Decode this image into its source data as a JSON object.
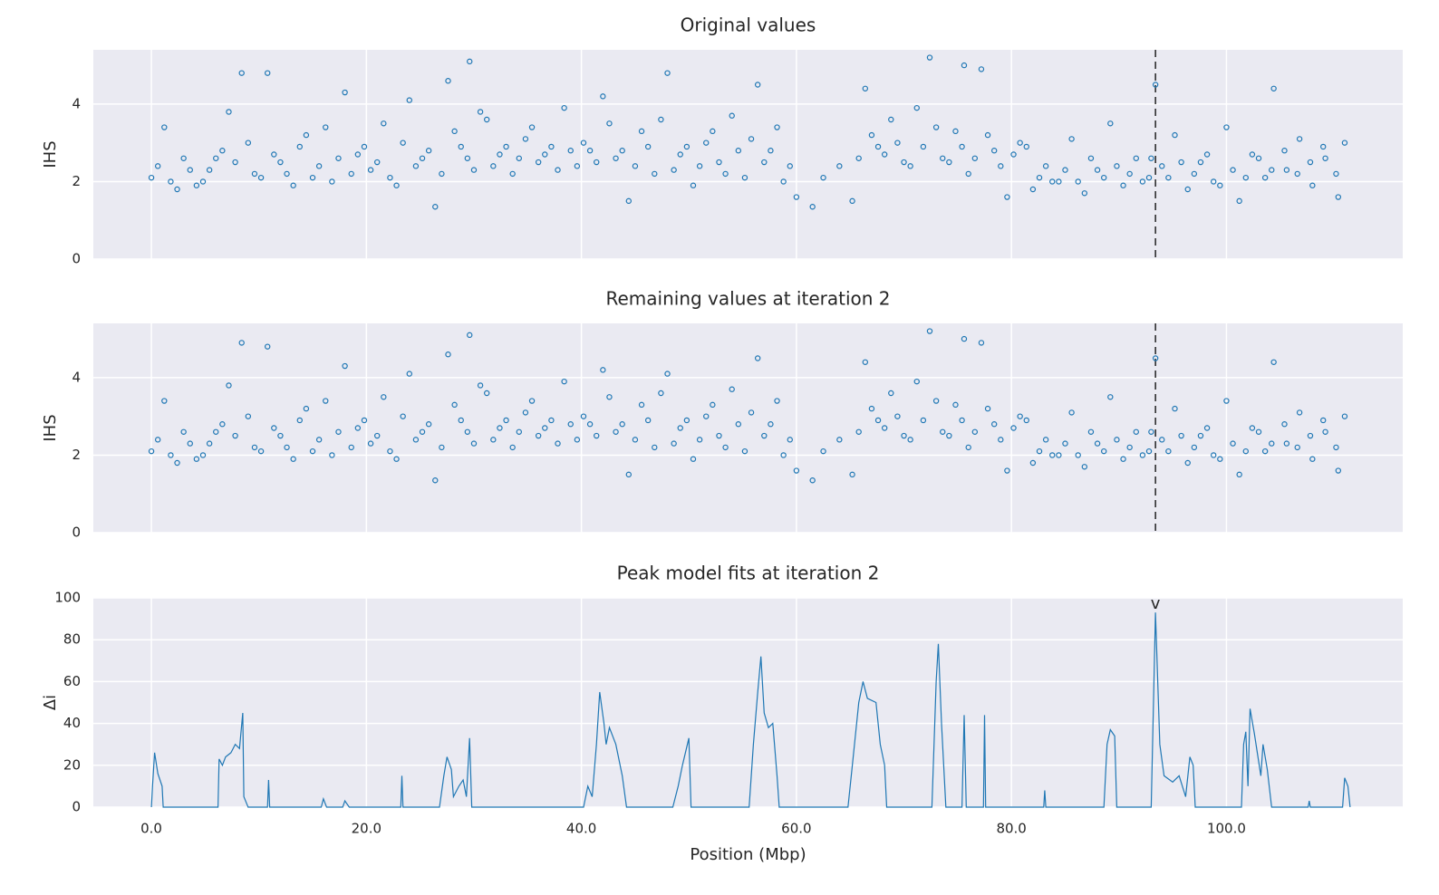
{
  "chart_data": [
    {
      "type": "scatter",
      "title": "Original values",
      "ylabel": "IHS",
      "color": "#1f77b4",
      "grid": true,
      "xlim": [
        -5.4,
        116.4
      ],
      "xticks": [
        0,
        20,
        40,
        60,
        80,
        100
      ],
      "xtick_labels": false,
      "ylim": [
        0,
        5.4
      ],
      "yticks": [
        0,
        2,
        4
      ],
      "vline": 93.4,
      "x": [
        0,
        1.2,
        2.4,
        3.6,
        4.8,
        6,
        7.2,
        8.4,
        9.6,
        10.8,
        12,
        13.2,
        14.4,
        15.6,
        16.8,
        18,
        19.2,
        20.4,
        21.6,
        22.8,
        24,
        25.2,
        26.4,
        27.6,
        28.8,
        29.6,
        30,
        31.2,
        32.4,
        33.6,
        34.8,
        36,
        37.2,
        38.4,
        39.6,
        40.8,
        42,
        43.2,
        44.4,
        45.6,
        46.8,
        48,
        49.2,
        50.4,
        51.6,
        52.8,
        54,
        55.2,
        56.4,
        57.6,
        58.8,
        60,
        61.5,
        62.5,
        64,
        65.2,
        66.4,
        67.6,
        68.8,
        70,
        71.2,
        72.4,
        73.6,
        74.8,
        75.6,
        76,
        77.2,
        78.4,
        79.6,
        80.8,
        82,
        83.2,
        84.4,
        85.6,
        86.8,
        88,
        89.2,
        90.4,
        91.6,
        92.8,
        93.4,
        94,
        95.2,
        96.4,
        97.6,
        98.8,
        100,
        101.2,
        102.4,
        103.6,
        104.4,
        105.6,
        106.8,
        108,
        109.2,
        110.4,
        111,
        0.6,
        1.8,
        3.0,
        4.2,
        5.4,
        6.6,
        7.8,
        9.0,
        10.2,
        11.4,
        12.6,
        13.8,
        15.0,
        16.2,
        17.4,
        18.6,
        19.8,
        21.0,
        22.2,
        23.4,
        24.6,
        25.8,
        27.0,
        28.2,
        29.4,
        30.6,
        31.8,
        33.0,
        34.2,
        35.4,
        36.6,
        37.8,
        39.0,
        40.2,
        41.4,
        42.6,
        43.8,
        45.0,
        46.2,
        47.4,
        48.6,
        49.8,
        51.0,
        52.2,
        53.4,
        54.6,
        55.8,
        57.0,
        58.2,
        59.4,
        65.8,
        67.0,
        68.2,
        69.4,
        70.6,
        71.8,
        73.0,
        74.2,
        75.4,
        76.6,
        77.8,
        79.0,
        80.2,
        81.4,
        82.6,
        83.8,
        85.0,
        86.2,
        87.4,
        88.6,
        89.8,
        91.0,
        92.2,
        93.0,
        94.6,
        95.8,
        97.0,
        98.2,
        99.4,
        100.6,
        101.8,
        103.0,
        104.2,
        105.4,
        106.6,
        107.8,
        109.0,
        110.2
      ],
      "values": [
        2.1,
        3.4,
        1.8,
        2.3,
        2.0,
        2.6,
        3.8,
        4.8,
        2.2,
        4.8,
        2.5,
        1.9,
        3.2,
        2.4,
        2.0,
        4.3,
        2.7,
        2.3,
        3.5,
        1.9,
        4.1,
        2.6,
        1.35,
        4.6,
        2.9,
        5.1,
        2.3,
        3.6,
        2.7,
        2.2,
        3.1,
        2.5,
        2.9,
        3.9,
        2.4,
        2.8,
        4.2,
        2.6,
        1.5,
        3.3,
        2.2,
        4.8,
        2.7,
        1.9,
        3.0,
        2.5,
        3.7,
        2.1,
        4.5,
        2.8,
        2.0,
        1.6,
        1.35,
        2.1,
        2.4,
        1.5,
        4.4,
        2.9,
        3.6,
        2.5,
        3.9,
        5.2,
        2.6,
        3.3,
        5.0,
        2.2,
        4.9,
        2.8,
        1.6,
        3.0,
        1.8,
        2.4,
        2.0,
        3.1,
        1.7,
        2.3,
        3.5,
        1.9,
        2.6,
        2.1,
        4.5,
        2.4,
        3.2,
        1.8,
        2.5,
        2.0,
        3.4,
        1.5,
        2.7,
        2.1,
        4.4,
        2.3,
        3.1,
        1.9,
        2.6,
        1.6,
        3.0,
        2.4,
        2.0,
        2.6,
        1.9,
        2.3,
        2.8,
        2.5,
        3.0,
        2.1,
        2.7,
        2.2,
        2.9,
        2.1,
        3.4,
        2.6,
        2.2,
        2.9,
        2.5,
        2.1,
        3.0,
        2.4,
        2.8,
        2.2,
        3.3,
        2.6,
        3.8,
        2.4,
        2.9,
        2.6,
        3.4,
        2.7,
        2.3,
        2.8,
        3.0,
        2.5,
        3.5,
        2.8,
        2.4,
        2.9,
        3.6,
        2.3,
        2.9,
        2.4,
        3.3,
        2.2,
        2.8,
        3.1,
        2.5,
        3.4,
        2.4,
        2.6,
        3.2,
        2.7,
        3.0,
        2.4,
        2.9,
        3.4,
        2.5,
        2.9,
        2.6,
        3.2,
        2.4,
        2.7,
        2.9,
        2.1,
        2.0,
        2.3,
        2.0,
        2.6,
        2.1,
        2.4,
        2.2,
        2.0,
        2.6,
        2.1,
        2.5,
        2.2,
        2.7,
        1.9,
        2.3,
        2.1,
        2.6,
        2.3,
        2.8,
        2.2,
        2.5,
        2.9,
        2.2
      ]
    },
    {
      "type": "scatter",
      "title": "Remaining values at iteration 2",
      "ylabel": "IHS",
      "color": "#1f77b4",
      "grid": true,
      "xlim": [
        -5.4,
        116.4
      ],
      "xticks": [
        0,
        20,
        40,
        60,
        80,
        100
      ],
      "xtick_labels": false,
      "ylim": [
        0,
        5.4
      ],
      "yticks": [
        0,
        2,
        4
      ],
      "vline": 93.4,
      "x": [
        0,
        1.2,
        2.4,
        3.6,
        4.8,
        6,
        7.2,
        8.4,
        9.6,
        10.8,
        12,
        13.2,
        14.4,
        15.6,
        16.8,
        18,
        19.2,
        20.4,
        21.6,
        22.8,
        24,
        25.2,
        26.4,
        27.6,
        28.8,
        29.6,
        30,
        31.2,
        32.4,
        33.6,
        34.8,
        36,
        37.2,
        38.4,
        39.6,
        40.8,
        42,
        43.2,
        44.4,
        45.6,
        46.8,
        48,
        49.2,
        50.4,
        51.6,
        52.8,
        54,
        55.2,
        56.4,
        57.6,
        58.8,
        60,
        61.5,
        62.5,
        64,
        65.2,
        66.4,
        67.6,
        68.8,
        70,
        71.2,
        72.4,
        73.6,
        74.8,
        75.6,
        76,
        77.2,
        78.4,
        79.6,
        80.8,
        82,
        83.2,
        84.4,
        85.6,
        86.8,
        88,
        89.2,
        90.4,
        91.6,
        92.8,
        93.4,
        94,
        95.2,
        96.4,
        97.6,
        98.8,
        100,
        101.2,
        102.4,
        103.6,
        104.4,
        105.6,
        106.8,
        108,
        109.2,
        110.4,
        111,
        0.6,
        1.8,
        3.0,
        4.2,
        5.4,
        6.6,
        7.8,
        9.0,
        10.2,
        11.4,
        12.6,
        13.8,
        15.0,
        16.2,
        17.4,
        18.6,
        19.8,
        21.0,
        22.2,
        23.4,
        24.6,
        25.8,
        27.0,
        28.2,
        29.4,
        30.6,
        31.8,
        33.0,
        34.2,
        35.4,
        36.6,
        37.8,
        39.0,
        40.2,
        41.4,
        42.6,
        43.8,
        45.0,
        46.2,
        47.4,
        48.6,
        49.8,
        51.0,
        52.2,
        53.4,
        54.6,
        55.8,
        57.0,
        58.2,
        59.4,
        65.8,
        67.0,
        68.2,
        69.4,
        70.6,
        71.8,
        73.0,
        74.2,
        75.4,
        76.6,
        77.8,
        79.0,
        80.2,
        81.4,
        82.6,
        83.8,
        85.0,
        86.2,
        87.4,
        88.6,
        89.8,
        91.0,
        92.2,
        93.0,
        94.6,
        95.8,
        97.0,
        98.2,
        99.4,
        100.6,
        101.8,
        103.0,
        104.2,
        105.4,
        106.6,
        107.8,
        109.0,
        110.2
      ],
      "values": [
        2.1,
        3.4,
        1.8,
        2.3,
        2.0,
        2.6,
        3.8,
        4.9,
        2.2,
        4.8,
        2.5,
        1.9,
        3.2,
        2.4,
        2.0,
        4.3,
        2.7,
        2.3,
        3.5,
        1.9,
        4.1,
        2.6,
        1.35,
        4.6,
        2.9,
        5.1,
        2.3,
        3.6,
        2.7,
        2.2,
        3.1,
        2.5,
        2.9,
        3.9,
        2.4,
        2.8,
        4.2,
        2.6,
        1.5,
        3.3,
        2.2,
        4.1,
        2.7,
        1.9,
        3.0,
        2.5,
        3.7,
        2.1,
        4.5,
        2.8,
        2.0,
        1.6,
        1.35,
        2.1,
        2.4,
        1.5,
        4.4,
        2.9,
        3.6,
        2.5,
        3.9,
        5.2,
        2.6,
        3.3,
        5.0,
        2.2,
        4.9,
        2.8,
        1.6,
        3.0,
        1.8,
        2.4,
        2.0,
        3.1,
        1.7,
        2.3,
        3.5,
        1.9,
        2.6,
        2.1,
        4.5,
        2.4,
        3.2,
        1.8,
        2.5,
        2.0,
        3.4,
        1.5,
        2.7,
        2.1,
        4.4,
        2.3,
        3.1,
        1.9,
        2.6,
        1.6,
        3.0,
        2.4,
        2.0,
        2.6,
        1.9,
        2.3,
        2.8,
        2.5,
        3.0,
        2.1,
        2.7,
        2.2,
        2.9,
        2.1,
        3.4,
        2.6,
        2.2,
        2.9,
        2.5,
        2.1,
        3.0,
        2.4,
        2.8,
        2.2,
        3.3,
        2.6,
        3.8,
        2.4,
        2.9,
        2.6,
        3.4,
        2.7,
        2.3,
        2.8,
        3.0,
        2.5,
        3.5,
        2.8,
        2.4,
        2.9,
        3.6,
        2.3,
        2.9,
        2.4,
        3.3,
        2.2,
        2.8,
        3.1,
        2.5,
        3.4,
        2.4,
        2.6,
        3.2,
        2.7,
        3.0,
        2.4,
        2.9,
        3.4,
        2.5,
        2.9,
        2.6,
        3.2,
        2.4,
        2.7,
        2.9,
        2.1,
        2.0,
        2.3,
        2.0,
        2.6,
        2.1,
        2.4,
        2.2,
        2.0,
        2.6,
        2.1,
        2.5,
        2.2,
        2.7,
        1.9,
        2.3,
        2.1,
        2.6,
        2.3,
        2.8,
        2.2,
        2.5,
        2.9,
        2.2
      ]
    },
    {
      "type": "line",
      "title": "Peak model fits at iteration 2",
      "ylabel": "Δi",
      "xlabel": "Position (Mbp)",
      "color": "#1f77b4",
      "grid": true,
      "xlim": [
        -5.4,
        116.4
      ],
      "xticks": [
        {
          "value": 0,
          "label": "0.0"
        },
        {
          "value": 20,
          "label": "20.0"
        },
        {
          "value": 40,
          "label": "40.0"
        },
        {
          "value": 60,
          "label": "60.0"
        },
        {
          "value": 80,
          "label": "80.0"
        },
        {
          "value": 100,
          "label": "100.0"
        }
      ],
      "ylim": [
        0,
        100
      ],
      "yticks": [
        0,
        20,
        40,
        60,
        80,
        100
      ],
      "annotation": {
        "text": "v",
        "x": 93.4,
        "y": 97
      },
      "x": [
        0,
        0.1,
        0.3,
        0.6,
        1.0,
        1.1,
        6.2,
        6.3,
        6.6,
        6.9,
        7.4,
        7.8,
        8.2,
        8.5,
        8.6,
        9.0,
        10.8,
        10.9,
        11.0,
        15.8,
        16.0,
        16.3,
        17.8,
        18,
        18.4,
        23.2,
        23.3,
        23.4,
        26.8,
        27.2,
        27.5,
        27.9,
        28.1,
        28.6,
        29.0,
        29.3,
        29.6,
        29.8,
        40.2,
        40.6,
        41.0,
        41.4,
        41.7,
        42.1,
        42.3,
        42.6,
        43.2,
        43.8,
        44.2,
        48.5,
        49.0,
        49.4,
        50.0,
        50.2,
        55.6,
        56.0,
        56.4,
        56.7,
        57.0,
        57.4,
        57.8,
        58.2,
        58.4,
        64.8,
        65.2,
        65.8,
        66.2,
        66.6,
        67.4,
        67.8,
        68.2,
        68.4,
        72.6,
        73.0,
        73.2,
        73.5,
        73.9,
        75.4,
        75.6,
        75.8,
        77.4,
        77.5,
        77.6,
        83.0,
        83.1,
        83.2,
        88.6,
        88.9,
        89.2,
        89.6,
        89.8,
        93.0,
        93.4,
        93.8,
        94.2,
        95.0,
        95.6,
        96.2,
        96.6,
        96.9,
        97.1,
        101.4,
        101.6,
        101.8,
        102.0,
        102.2,
        102.6,
        103.2,
        103.4,
        103.8,
        104.2,
        107.6,
        107.7,
        107.8,
        110.8,
        111.0,
        111.3,
        111.5
      ],
      "values": [
        0,
        10,
        26,
        16,
        10,
        0,
        0,
        23,
        20,
        24,
        26,
        30,
        28,
        45,
        5,
        0,
        0,
        13,
        0,
        0,
        4,
        0,
        0,
        3,
        0,
        0,
        15,
        0,
        0,
        15,
        24,
        18,
        5,
        10,
        13,
        5,
        33,
        0,
        0,
        10,
        5,
        30,
        55,
        40,
        30,
        38,
        30,
        15,
        0,
        0,
        10,
        20,
        33,
        0,
        0,
        30,
        55,
        72,
        45,
        38,
        40,
        15,
        0,
        0,
        20,
        50,
        60,
        52,
        50,
        30,
        20,
        0,
        0,
        60,
        78,
        40,
        0,
        0,
        44,
        0,
        0,
        44,
        0,
        0,
        8,
        0,
        0,
        30,
        37,
        34,
        0,
        0,
        93,
        30,
        15,
        12,
        15,
        5,
        24,
        20,
        0,
        0,
        30,
        36,
        10,
        47,
        35,
        15,
        30,
        18,
        0,
        0,
        3,
        0,
        0,
        14,
        10,
        0
      ]
    }
  ]
}
